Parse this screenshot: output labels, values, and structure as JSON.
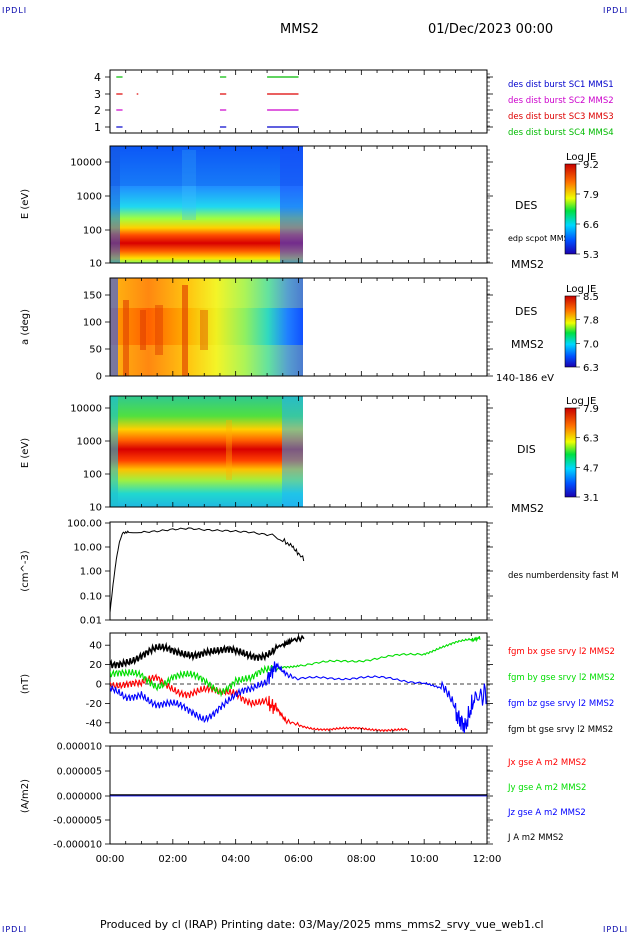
{
  "header": {
    "corner_left": "IPDLI",
    "corner_right": "IPDLI",
    "spacecraft": "MMS2",
    "date": "01/Dec/2023 00:00",
    "corner_bottom_left": "IPDLI",
    "corner_bottom_right": "IPDLI"
  },
  "footer": {
    "text": "Produced by cl (IRAP)   Printing date: 03/May/2025   mms_mms2_srvy_vue_web1.cl"
  },
  "colors": {
    "mms1": "#0000cc",
    "mms2": "#cc00cc",
    "mms3": "#dd0000",
    "mms4": "#00bb00",
    "bx": "#ff0000",
    "by": "#00dd00",
    "bz": "#0000ff",
    "bt": "#000000"
  },
  "chart_data": [
    {
      "type": "line",
      "name": "burst availability",
      "yticks": [
        "4",
        "3",
        "2",
        "1"
      ],
      "legend": [
        "des dist burst SC1 MMS1",
        "des dist burst SC2 MMS2",
        "des dist burst SC3 MMS3",
        "des dist burst SC4 MMS4"
      ],
      "segments": {
        "4": [
          [
            0.2,
            0.4
          ],
          [
            3.5,
            3.7
          ],
          [
            5.0,
            6.0
          ]
        ],
        "3": [
          [
            0.2,
            0.4
          ],
          [
            0.85,
            0.9
          ],
          [
            3.5,
            3.7
          ],
          [
            5.0,
            6.0
          ]
        ],
        "2": [
          [
            0.2,
            0.4
          ],
          [
            3.5,
            3.7
          ],
          [
            5.0,
            6.0
          ]
        ],
        "1": [
          [
            0.2,
            0.4
          ],
          [
            3.5,
            3.7
          ],
          [
            5.0,
            6.0
          ]
        ]
      }
    },
    {
      "type": "heatmap",
      "name": "DES energy spectrogram",
      "ylabel": "E (eV)",
      "yticks": [
        "10000",
        "1000",
        "100",
        "10"
      ],
      "colorbar_title": "Log JE",
      "colorbar_ticks": [
        "9.2",
        "7.9",
        "6.6",
        "5.3"
      ],
      "right_labels": [
        "DES",
        "edp scpot MMS2",
        "MMS2"
      ]
    },
    {
      "type": "heatmap",
      "name": "DES pitch angle",
      "ylabel": "a (deg)",
      "yticks": [
        "150",
        "100",
        "50",
        "0"
      ],
      "colorbar_title": "Log JE",
      "colorbar_ticks": [
        "8.5",
        "7.8",
        "7.0",
        "6.3"
      ],
      "right_labels": [
        "DES",
        "MMS2",
        "140-186 eV"
      ]
    },
    {
      "type": "heatmap",
      "name": "DIS energy spectrogram",
      "ylabel": "E (eV)",
      "yticks": [
        "10000",
        "1000",
        "100",
        "10"
      ],
      "colorbar_title": "Log JE",
      "colorbar_ticks": [
        "7.9",
        "6.3",
        "4.7",
        "3.1"
      ],
      "right_labels": [
        "DIS",
        "MMS2"
      ]
    },
    {
      "type": "line",
      "name": "density",
      "ylabel": "(cm^-3)",
      "yticks": [
        "100.00",
        "10.00",
        "1.00",
        "0.10",
        "0.01"
      ],
      "legend": [
        "des numberdensity fast M"
      ],
      "x_hours": [
        0.0,
        0.1,
        0.2,
        0.3,
        0.4,
        0.6,
        1.0,
        1.5,
        2.0,
        2.5,
        3.0,
        3.5,
        4.0,
        4.5,
        5.0,
        5.5,
        5.8,
        6.0,
        6.2
      ],
      "values": [
        0.02,
        0.3,
        3.0,
        15,
        35,
        40,
        38,
        42,
        50,
        55,
        48,
        45,
        42,
        38,
        30,
        18,
        10,
        5,
        3
      ]
    },
    {
      "type": "line",
      "name": "magnetic field",
      "ylabel": "(nT)",
      "yticks": [
        "40",
        "20",
        "0",
        "-20",
        "-40"
      ],
      "legend": [
        "fgm bx gse srvy l2 MMS2",
        "fgm by gse srvy l2 MMS2",
        "fgm bz gse srvy l2 MMS2",
        "fgm bt gse srvy l2 MMS2"
      ],
      "series": [
        {
          "key": "bx",
          "x_hours": [
            0,
            0.5,
            1,
            1.5,
            2,
            2.5,
            3,
            3.5,
            4,
            4.5,
            5,
            5.3,
            5.6,
            6,
            6.5,
            7,
            7.5,
            8,
            8.5,
            9,
            9.5
          ],
          "values": [
            5,
            0,
            -5,
            5,
            0,
            -8,
            -10,
            -12,
            -5,
            -15,
            -20,
            -25,
            -38,
            -42,
            -45,
            -47,
            -47,
            -46,
            -46,
            -47,
            -48
          ]
        },
        {
          "key": "by",
          "x_hours": [
            0,
            0.5,
            1,
            1.5,
            2,
            2.5,
            3,
            3.5,
            4,
            4.5,
            5,
            5.5,
            6,
            7,
            8,
            9,
            10,
            10.5,
            11,
            11.5,
            11.8
          ],
          "values": [
            10,
            5,
            8,
            2,
            10,
            5,
            0,
            -5,
            8,
            3,
            10,
            18,
            20,
            22,
            25,
            28,
            32,
            38,
            42,
            45,
            48
          ]
        },
        {
          "key": "bz",
          "x_hours": [
            0,
            0.5,
            1,
            1.5,
            2,
            2.5,
            3,
            3.5,
            4,
            4.5,
            5,
            5.3,
            5.6,
            6,
            7,
            8,
            9,
            10,
            10.5,
            11,
            11.3,
            11.6,
            12
          ],
          "values": [
            -10,
            -15,
            -5,
            -20,
            -25,
            -30,
            -32,
            -20,
            -15,
            -10,
            5,
            20,
            10,
            5,
            6,
            7,
            5,
            2,
            -5,
            -30,
            -45,
            -15,
            -10
          ]
        },
        {
          "key": "bt",
          "x_hours": [
            0,
            0.5,
            1,
            1.5,
            2,
            2.5,
            3,
            3.5,
            4,
            4.5,
            5,
            5.5,
            5.8,
            6.2
          ],
          "values": [
            20,
            28,
            30,
            32,
            32,
            35,
            36,
            30,
            30,
            32,
            35,
            40,
            45,
            48
          ]
        }
      ]
    },
    {
      "type": "line",
      "name": "current density",
      "ylabel": "(A/m2)",
      "yticks": [
        "0.000010",
        "0.000005",
        "0.000000",
        "-0.000005",
        "-0.000010"
      ],
      "legend": [
        "Jx gse A m2 MMS2",
        "Jy gse A m2 MMS2",
        "Jz gse A m2 MMS2",
        "J A m2 MMS2"
      ],
      "xticks": [
        "00:00",
        "02:00",
        "04:00",
        "06:00",
        "08:00",
        "10:00",
        "12:00"
      ]
    }
  ]
}
